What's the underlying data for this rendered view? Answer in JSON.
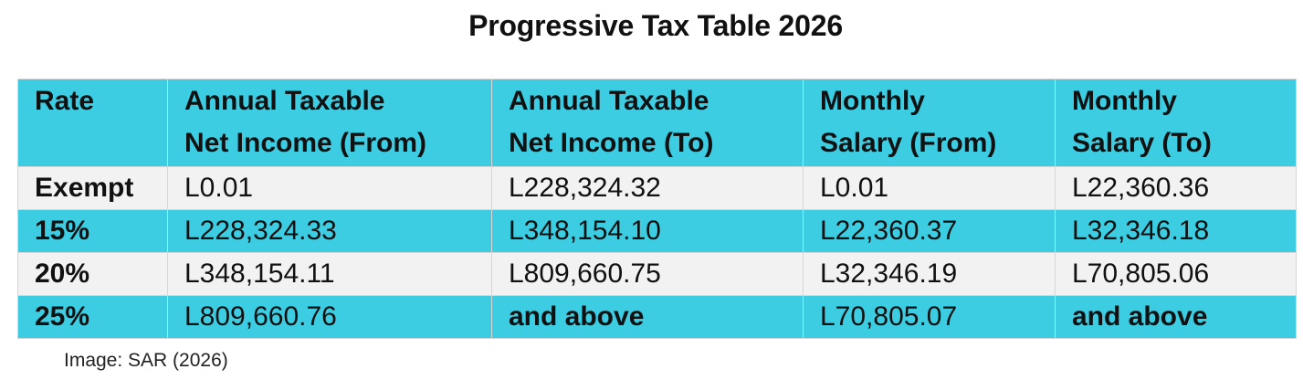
{
  "title": "Progressive Tax Table 2026",
  "colors": {
    "header_and_alt_rows": "#3ccde2",
    "light_rows": "#f2f2f2"
  },
  "table": {
    "headers": [
      {
        "line1": "Rate",
        "line2": ""
      },
      {
        "line1": "Annual Taxable",
        "line2": "Net Income (From)"
      },
      {
        "line1": "Annual Taxable",
        "line2": "Net Income (To)"
      },
      {
        "line1": "Monthly",
        "line2": "Salary (From)"
      },
      {
        "line1": "Monthly",
        "line2": "Salary (To)"
      }
    ],
    "rows": [
      {
        "rate": "Exempt",
        "annual_from": "L0.01",
        "annual_to": "L228,324.32",
        "monthly_from": "L0.01",
        "monthly_to": "L22,360.36"
      },
      {
        "rate": "15%",
        "annual_from": "L228,324.33",
        "annual_to": "L348,154.10",
        "monthly_from": "L22,360.37",
        "monthly_to": "L32,346.18"
      },
      {
        "rate": "20%",
        "annual_from": "L348,154.11",
        "annual_to": "L809,660.75",
        "monthly_from": "L32,346.19",
        "monthly_to": "L70,805.06"
      },
      {
        "rate": "25%",
        "annual_from": "L809,660.76",
        "annual_to": "and above",
        "monthly_from": "L70,805.07",
        "monthly_to": "and above"
      }
    ]
  },
  "caption": "Image: SAR (2026)"
}
